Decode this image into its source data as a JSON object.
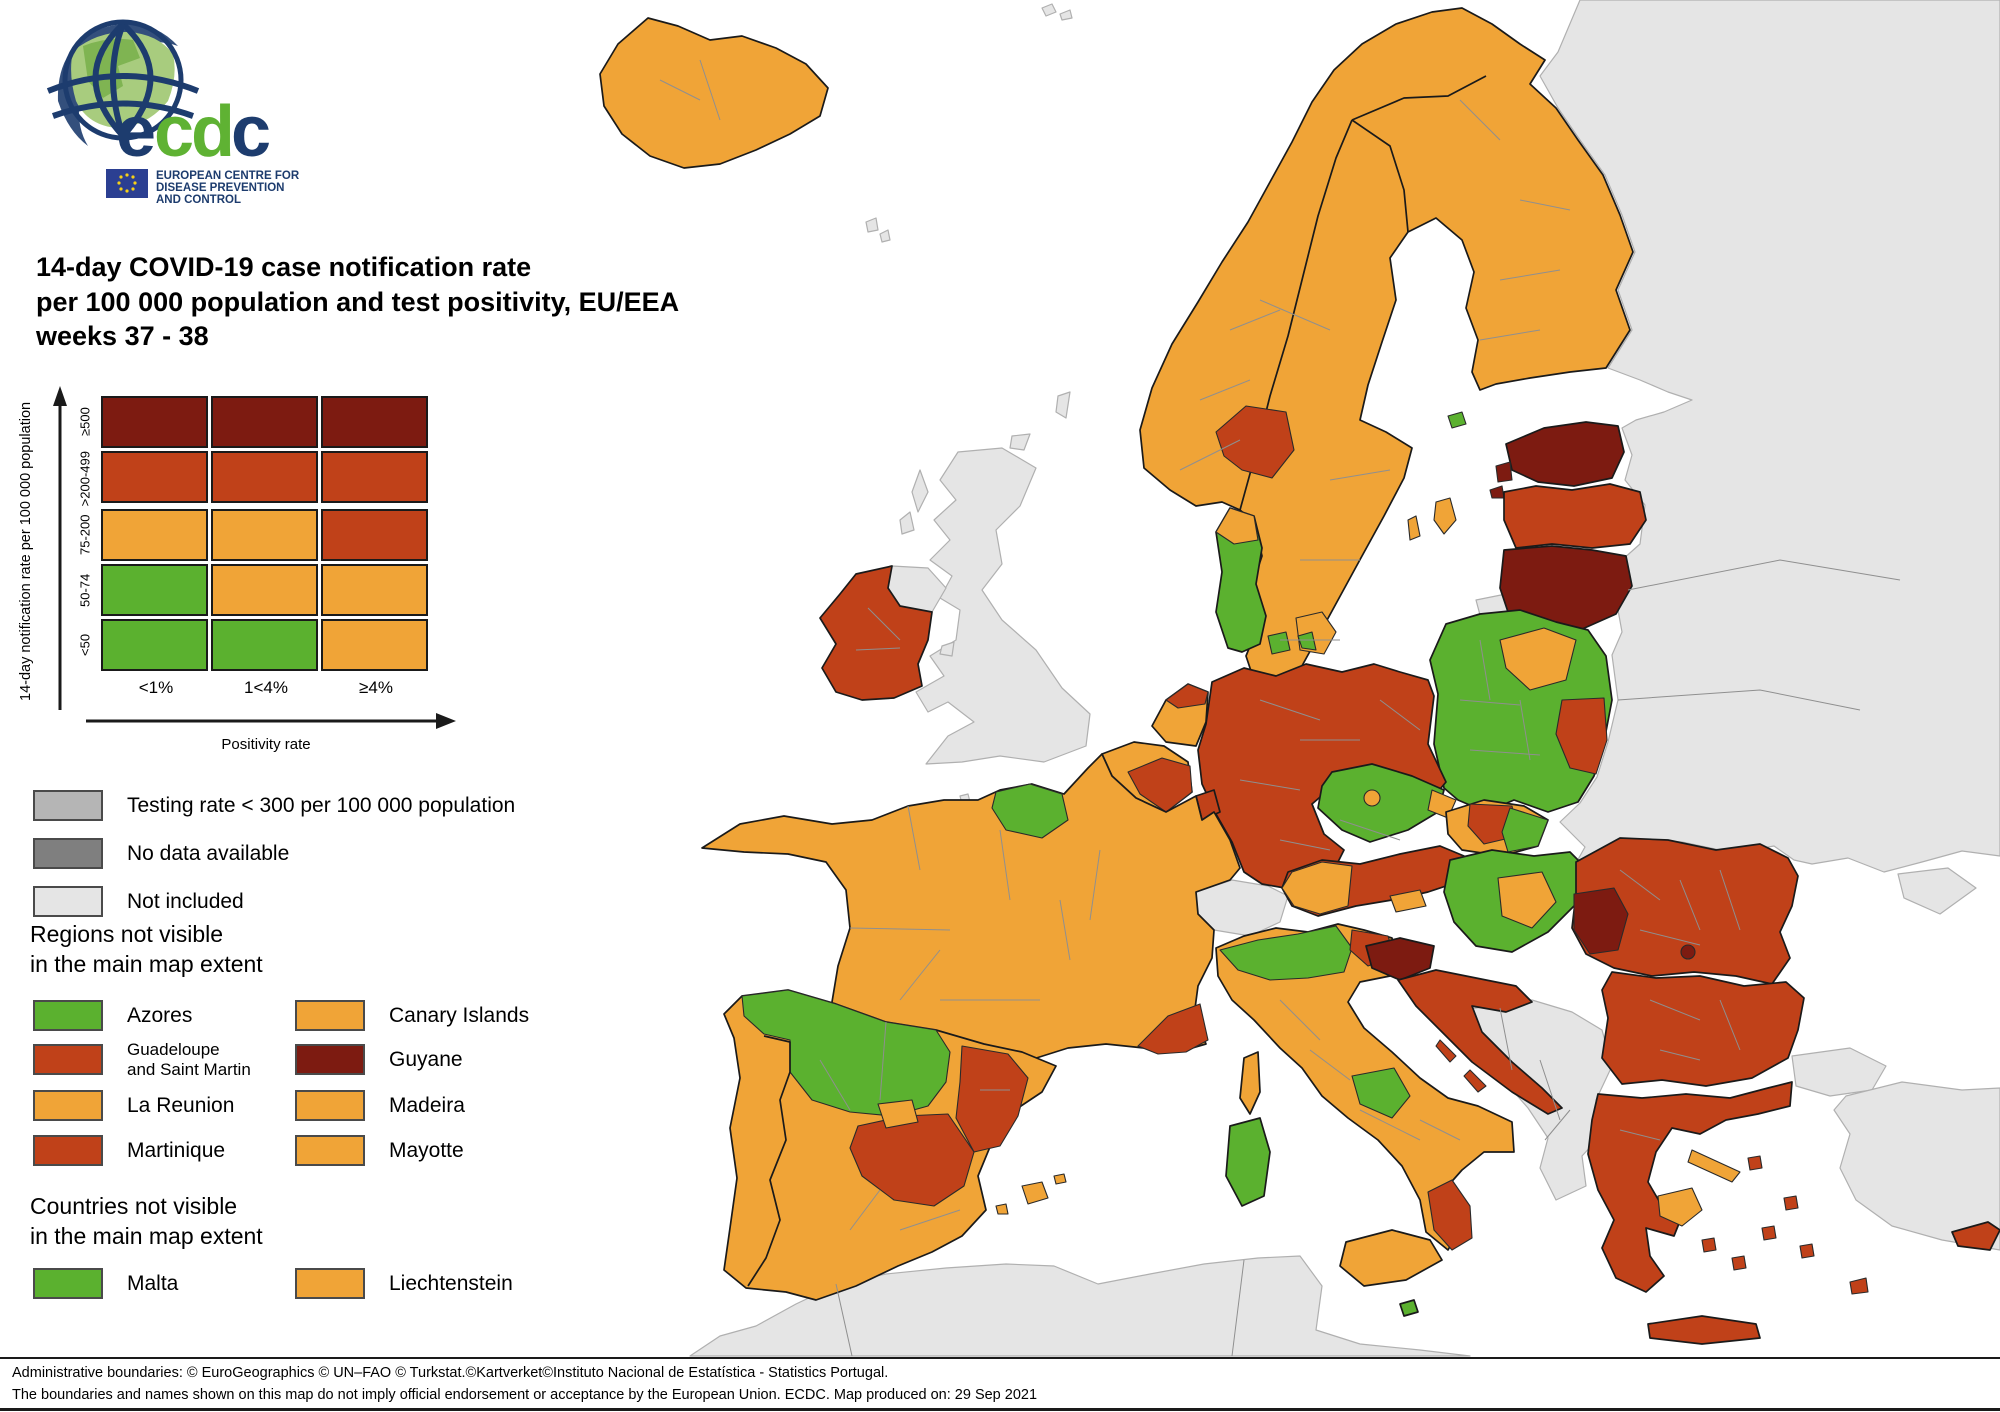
{
  "logo": {
    "letters": [
      "e",
      "c",
      "d",
      "c"
    ],
    "org_line1": "EUROPEAN CENTRE FOR",
    "org_line2": "DISEASE PREVENTION",
    "org_line3": "AND CONTROL"
  },
  "title": {
    "line1": "14-day COVID-19 case notification rate",
    "line2": "per 100 000 population and test positivity, EU/EEA",
    "line3": "weeks 37 - 38"
  },
  "colors": {
    "green": "#5BB12F",
    "orange": "#F0A437",
    "red": "#C04119",
    "dark_red": "#7D1B11",
    "gray_testing": "#B5B5B5",
    "gray_no_data": "#7F7F7F",
    "not_included": "#E5E5E5",
    "sea": "#FFFFFF",
    "navy": "#1D3C6E",
    "logo_green": "#5FB233"
  },
  "matrix_legend": {
    "y_axis_label": "14-day notification rate per 100 000 population",
    "x_axis_label": "Positivity rate",
    "columns": [
      "<1%",
      "1<4%",
      "≥4%"
    ],
    "rows": [
      {
        "label": "≥500",
        "cells": [
          "dark_red",
          "dark_red",
          "dark_red"
        ]
      },
      {
        "label": ">200-499",
        "cells": [
          "red",
          "red",
          "red"
        ]
      },
      {
        "label": "75-200",
        "cells": [
          "orange",
          "orange",
          "red"
        ]
      },
      {
        "label": "50-74",
        "cells": [
          "green",
          "orange",
          "orange"
        ]
      },
      {
        "label": "<50",
        "cells": [
          "green",
          "green",
          "orange"
        ]
      }
    ]
  },
  "status_legend": [
    {
      "label": "Testing rate < 300 per 100 000 population",
      "color": "gray_testing"
    },
    {
      "label": "No data available",
      "color": "gray_no_data"
    },
    {
      "label": "Not included",
      "color": "not_included"
    }
  ],
  "regions_section": {
    "heading_line1": "Regions not visible",
    "heading_line2": "in the main map extent",
    "items": [
      {
        "label": "Azores",
        "label2": "",
        "color": "green"
      },
      {
        "label": "Canary Islands",
        "label2": "",
        "color": "orange"
      },
      {
        "label": "Guadeloupe",
        "label2": "and Saint Martin",
        "color": "red"
      },
      {
        "label": "Guyane",
        "label2": "",
        "color": "dark_red"
      },
      {
        "label": "La Reunion",
        "label2": "",
        "color": "orange"
      },
      {
        "label": "Madeira",
        "label2": "",
        "color": "orange"
      },
      {
        "label": "Martinique",
        "label2": "",
        "color": "red"
      },
      {
        "label": "Mayotte",
        "label2": "",
        "color": "orange"
      }
    ]
  },
  "countries_section": {
    "heading_line1": "Countries not visible",
    "heading_line2": "in the main map extent",
    "items": [
      {
        "label": "Malta",
        "color": "green"
      },
      {
        "label": "Liechtenstein",
        "color": "orange"
      }
    ]
  },
  "footer": {
    "line1": "Administrative boundaries: © EuroGeographics © UN–FAO © Turkstat.©Kartverket©Instituto Nacional de Estatística - Statistics Portugal.",
    "line2": "The boundaries and names shown on this map do not imply official endorsement or acceptance by the European Union. ECDC. Map produced on: 29 Sep 2021"
  },
  "map": {
    "regions": {
      "iceland": "orange",
      "jan_mayen": "not_included",
      "faroe": "not_included",
      "fennoscandia": "orange",
      "oslo_region": "red",
      "aland": "green",
      "gotland": "orange",
      "oland": "orange",
      "bornholm": "green",
      "denmark_jutland": "green",
      "denmark_north_tip": "orange",
      "denmark_fyn": "green",
      "denmark_zealand": "orange",
      "denmark_zealand_patch": "green",
      "estonia": "dark_red",
      "estonia_islands": "dark_red",
      "latvia": "red",
      "lithuania": "dark_red",
      "kaliningrad": "not_included",
      "poland": "green",
      "poland_east": "red",
      "poland_northeast": "orange",
      "germany": "red",
      "netherlands": "orange",
      "netherlands_north": "red",
      "belgium": "orange",
      "wallonia": "red",
      "luxembourg": "red",
      "czechia": "green",
      "prague": "orange",
      "czechia_east": "orange",
      "slovakia": "orange",
      "slovakia_center": "red",
      "slovakia_east": "green",
      "austria": "red",
      "austria_west": "orange",
      "austria_carinthia": "orange",
      "switzerland": "not_included",
      "france": "orange",
      "normandy": "green",
      "provence": "red",
      "corsica": "orange",
      "iberia": "orange",
      "spain_northwest": "green",
      "aragon": "red",
      "castilla_la_mancha": "red",
      "madrid": "orange",
      "balearics": "orange",
      "italy": "orange",
      "italy_north": "green",
      "friuli": "red",
      "abruzzo": "green",
      "calabria": "red",
      "sicily": "orange",
      "sardinia": "green",
      "malta": "green",
      "slovenia": "dark_red",
      "croatia": "red",
      "croatia_islands": "red",
      "hungary": "green",
      "hungary_center": "orange",
      "romania": "red",
      "romania_west": "dark_red",
      "bucharest": "dark_red",
      "bulgaria": "red",
      "greece": "red",
      "attica": "orange",
      "evia": "orange",
      "crete": "red",
      "greek_islands": "red",
      "cyprus": "red",
      "ireland": "red",
      "northern_ireland": "not_included",
      "united_kingdom": "not_included",
      "uk_islands": "not_included",
      "isle_of_man": "not_included",
      "channel_islands": "not_included",
      "eastern_europe": "not_included",
      "crimea": "not_included",
      "turkey_thrace": "not_included",
      "turkey": "not_included",
      "north_africa": "not_included",
      "western_balkans": "not_included"
    }
  }
}
